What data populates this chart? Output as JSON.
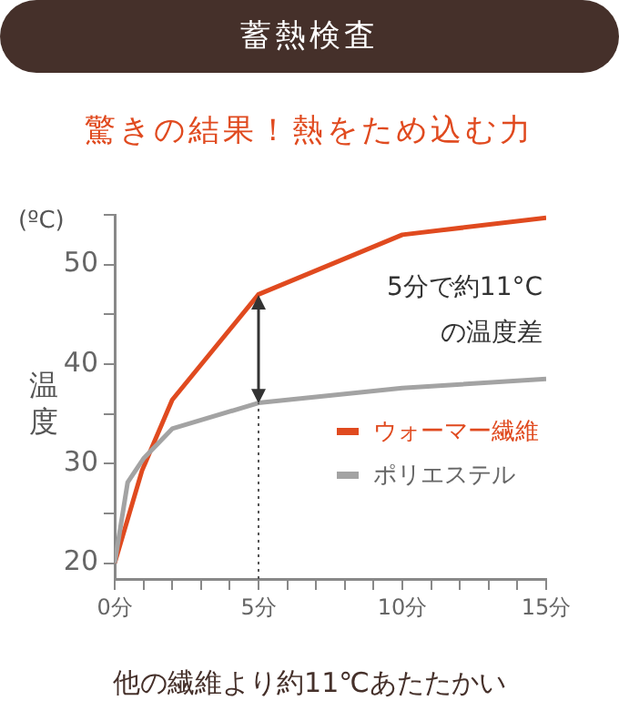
{
  "chart_data": {
    "type": "line",
    "title": "蓄熱検査",
    "subtitle": "驚きの結果！熱をため込む力",
    "ylabel": "温度",
    "annotations": [
      "(ºC)",
      "5分で約11°C\nの温度差",
      "他の繊維より約11℃あたたかい"
    ],
    "series": [
      {
        "name": "ウォーマー繊維",
        "color": "#e04a1f",
        "x": [
          0,
          0.95,
          2,
          5,
          10,
          15
        ],
        "values": [
          20,
          29.3,
          36.4,
          47,
          53,
          54.7
        ]
      },
      {
        "name": "ポリエステル",
        "color": "#a3a3a3",
        "x": [
          0,
          0.45,
          1,
          2,
          5,
          10,
          15
        ],
        "values": [
          20,
          28.1,
          30.5,
          33.5,
          36.1,
          37.6,
          38.5
        ]
      }
    ],
    "xlim": [
      0,
      15
    ],
    "xticks": [
      {
        "value": 0,
        "label": "0分"
      },
      {
        "value": 1,
        "label": null
      },
      {
        "value": 2,
        "label": null
      },
      {
        "value": 3,
        "label": null
      },
      {
        "value": 4,
        "label": null
      },
      {
        "value": 5,
        "label": "5分"
      },
      {
        "value": 6,
        "label": null
      },
      {
        "value": 7,
        "label": null
      },
      {
        "value": 8,
        "label": null
      },
      {
        "value": 9,
        "label": null
      },
      {
        "value": 10,
        "label": "10分"
      },
      {
        "value": 11,
        "label": null
      },
      {
        "value": 12,
        "label": null
      },
      {
        "value": 13,
        "label": null
      },
      {
        "value": 14,
        "label": null
      },
      {
        "value": 15,
        "label": "15分"
      }
    ],
    "ylim": [
      18.4,
      55
    ],
    "yticks": [
      20,
      {
        "value": 25,
        "label": null
      },
      30,
      {
        "value": 35,
        "label": null
      },
      40,
      {
        "value": 45,
        "label": null
      },
      50,
      {
        "value": 55,
        "label": null
      }
    ],
    "ref_lines": [
      {
        "axis": "x",
        "value": 5,
        "line_style": "dotted",
        "color": "#555555"
      }
    ],
    "grid": false,
    "legend": "right",
    "marker": "none",
    "line_style": "solid"
  }
}
